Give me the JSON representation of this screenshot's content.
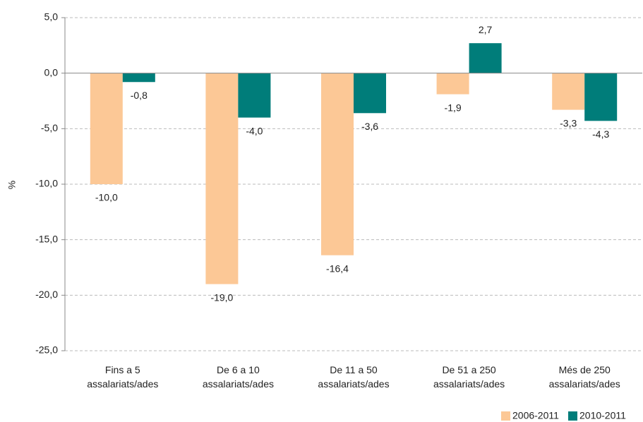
{
  "chart_data": {
    "type": "bar",
    "categories": [
      "Fins a 5 assalariats/ades",
      "De 6 a 10 assalariats/ades",
      "De 11 a 50 assalariats/ades",
      "De 51 a 250 assalariats/ades",
      "Més de 250 assalariats/ades"
    ],
    "series": [
      {
        "name": "2006-2011",
        "color": "#fcc896",
        "values": [
          -10.0,
          -19.0,
          -16.4,
          -1.9,
          -3.3
        ],
        "value_labels": [
          "-10,0",
          "-19,0",
          "-16,4",
          "-1,9",
          "-3,3"
        ]
      },
      {
        "name": "2010-2011",
        "color": "#007d7a",
        "values": [
          -0.8,
          -4.0,
          -3.6,
          2.7,
          -4.3
        ],
        "value_labels": [
          "-0,8",
          "-4,0",
          "-3,6",
          "2,7",
          "-4,3"
        ]
      }
    ],
    "y_label": "%",
    "ylim": [
      -25,
      5
    ],
    "yticks": [
      {
        "value": -25,
        "label": "-25,0"
      },
      {
        "value": -20,
        "label": "-20,0"
      },
      {
        "value": -15,
        "label": "-15,0"
      },
      {
        "value": -10,
        "label": "-10,0"
      },
      {
        "value": -5,
        "label": "-5,0"
      },
      {
        "value": 0,
        "label": "0,0"
      },
      {
        "value": 5,
        "label": "5,0"
      }
    ],
    "grid": true,
    "legend": "bottom-right"
  }
}
